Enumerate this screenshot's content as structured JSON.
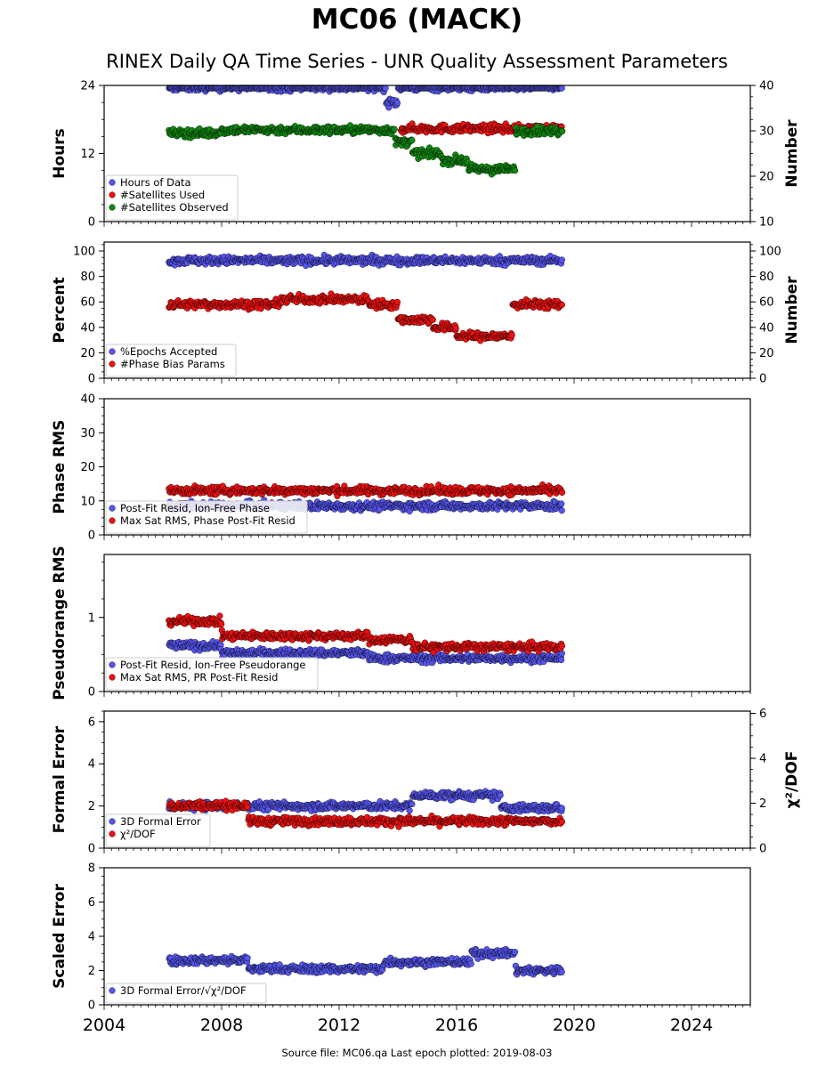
{
  "page": {
    "title": "MC06 (MACK)",
    "subtitle": "RINEX Daily QA Time Series - UNR Quality Assessment Parameters",
    "footer": "Source file: MC06.qa Last epoch plotted: 2019-08-03"
  },
  "colors": {
    "blue": "#5555ee",
    "red": "#ee1111",
    "green": "#118811",
    "edge": "#000000"
  },
  "chart_data": [
    {
      "type": "scatter",
      "id": "hours",
      "ylabel": "Hours",
      "ylim": [
        0,
        24
      ],
      "yticks": [
        "0",
        "12",
        "24"
      ],
      "right_ylabel": "Number",
      "right_ylim": [
        10,
        40
      ],
      "right_yticks": [
        "10",
        "20",
        "30",
        "40"
      ],
      "xlim": [
        2004,
        2026
      ],
      "legend_position": "bottom-left",
      "series": [
        {
          "name": "Hours of Data",
          "color": "blue",
          "axis": "left",
          "segments": [
            [
              2006.2,
              2013.6,
              23.7
            ],
            [
              2013.6,
              2014.0,
              21.0
            ],
            [
              2014.0,
              2019.6,
              23.7
            ]
          ]
        },
        {
          "name": "#Satellites Used",
          "color": "red",
          "axis": "right",
          "segments": [
            [
              2014.1,
              2019.6,
              30.5
            ]
          ]
        },
        {
          "name": "#Satellites Observed",
          "color": "green",
          "axis": "right",
          "segments": [
            [
              2006.2,
              2008.0,
              29.5
            ],
            [
              2008.0,
              2013.9,
              30.2
            ],
            [
              2013.9,
              2014.5,
              27.5
            ],
            [
              2014.5,
              2015.5,
              25.0
            ],
            [
              2015.5,
              2016.4,
              23.5
            ],
            [
              2016.4,
              2018.0,
              21.5
            ],
            [
              2018.0,
              2019.6,
              30.0
            ]
          ]
        }
      ]
    },
    {
      "type": "scatter",
      "id": "percent",
      "ylabel": "Percent",
      "ylim": [
        0,
        107
      ],
      "yticks": [
        "0",
        "20",
        "40",
        "60",
        "80",
        "100"
      ],
      "right_ylabel": "Number",
      "right_ylim": [
        0,
        107
      ],
      "right_yticks": [
        "0",
        "20",
        "40",
        "60",
        "80",
        "100"
      ],
      "xlim": [
        2004,
        2026
      ],
      "legend_position": "bottom-left",
      "series": [
        {
          "name": "%Epochs Accepted",
          "color": "blue",
          "axis": "left",
          "segments": [
            [
              2006.2,
              2019.6,
              92.5
            ]
          ]
        },
        {
          "name": "#Phase Bias Params",
          "color": "red",
          "axis": "right",
          "segments": [
            [
              2006.2,
              2010.0,
              58
            ],
            [
              2010.0,
              2013.0,
              62
            ],
            [
              2013.0,
              2014.0,
              58
            ],
            [
              2014.0,
              2015.2,
              46
            ],
            [
              2015.2,
              2016.0,
              40
            ],
            [
              2016.0,
              2017.9,
              33
            ],
            [
              2017.9,
              2019.6,
              58
            ]
          ]
        }
      ]
    },
    {
      "type": "scatter",
      "id": "phase-rms",
      "ylabel": "Phase RMS",
      "ylim": [
        0,
        40
      ],
      "yticks": [
        "0",
        "10",
        "20",
        "30",
        "40"
      ],
      "xlim": [
        2004,
        2026
      ],
      "legend_position": "bottom-left",
      "series": [
        {
          "name": "Post-Fit Resid, Ion-Free Phase",
          "color": "blue",
          "axis": "left",
          "segments": [
            [
              2006.2,
              2019.6,
              8.5
            ]
          ]
        },
        {
          "name": "Max Sat RMS, Phase Post-Fit Resid",
          "color": "red",
          "axis": "left",
          "segments": [
            [
              2006.2,
              2019.6,
              13
            ]
          ]
        }
      ]
    },
    {
      "type": "scatter",
      "id": "pseudorange-rms",
      "ylabel": "Pseudorange RMS",
      "ylim": [
        0,
        1.85
      ],
      "yticks": [
        "0",
        "1"
      ],
      "xlim": [
        2004,
        2026
      ],
      "legend_position": "bottom-left",
      "series": [
        {
          "name": "Post-Fit Resid, Ion-Free Pseudorange",
          "color": "blue",
          "axis": "left",
          "segments": [
            [
              2006.2,
              2008.0,
              0.62
            ],
            [
              2008.0,
              2013.0,
              0.52
            ],
            [
              2013.0,
              2014.5,
              0.45
            ],
            [
              2014.5,
              2019.6,
              0.45
            ]
          ]
        },
        {
          "name": "Max Sat RMS, PR Post-Fit Resid",
          "color": "red",
          "axis": "left",
          "segments": [
            [
              2006.2,
              2008.0,
              0.95
            ],
            [
              2008.0,
              2013.0,
              0.75
            ],
            [
              2013.0,
              2014.5,
              0.7
            ],
            [
              2014.5,
              2019.6,
              0.6
            ]
          ]
        }
      ]
    },
    {
      "type": "scatter",
      "id": "formal-error",
      "ylabel": "Formal Error",
      "ylim": [
        0,
        6.5
      ],
      "yticks": [
        "0",
        "2",
        "4",
        "6"
      ],
      "right_ylabel": "χ²/DOF",
      "right_ylim": [
        0,
        6.1
      ],
      "right_yticks": [
        "0",
        "2",
        "4",
        "6"
      ],
      "xlim": [
        2004,
        2026
      ],
      "legend_position": "bottom-left",
      "series": [
        {
          "name": "3D Formal Error",
          "color": "blue",
          "axis": "left",
          "segments": [
            [
              2006.2,
              2014.5,
              2.0
            ],
            [
              2014.5,
              2017.5,
              2.5
            ],
            [
              2017.5,
              2019.6,
              1.9
            ]
          ]
        },
        {
          "name": "χ²/DOF",
          "color": "red",
          "axis": "right",
          "segments": [
            [
              2006.2,
              2008.9,
              1.9
            ],
            [
              2008.9,
              2019.6,
              1.2
            ]
          ]
        }
      ]
    },
    {
      "type": "scatter",
      "id": "scaled-error",
      "ylabel": "Scaled Error",
      "ylim": [
        0,
        8
      ],
      "yticks": [
        "0",
        "2",
        "4",
        "6",
        "8"
      ],
      "xlim": [
        2004,
        2026
      ],
      "xticks": [
        "2004",
        "2008",
        "2012",
        "2016",
        "2020",
        "2024"
      ],
      "legend_position": "bottom-left",
      "series": [
        {
          "name": "3D Formal Error/√χ²/DOF",
          "color": "blue",
          "axis": "left",
          "segments": [
            [
              2006.2,
              2008.9,
              2.6
            ],
            [
              2008.9,
              2013.5,
              2.1
            ],
            [
              2013.5,
              2016.5,
              2.5
            ],
            [
              2016.5,
              2018.0,
              3.0
            ],
            [
              2018.0,
              2019.6,
              2.0
            ]
          ]
        }
      ]
    }
  ]
}
